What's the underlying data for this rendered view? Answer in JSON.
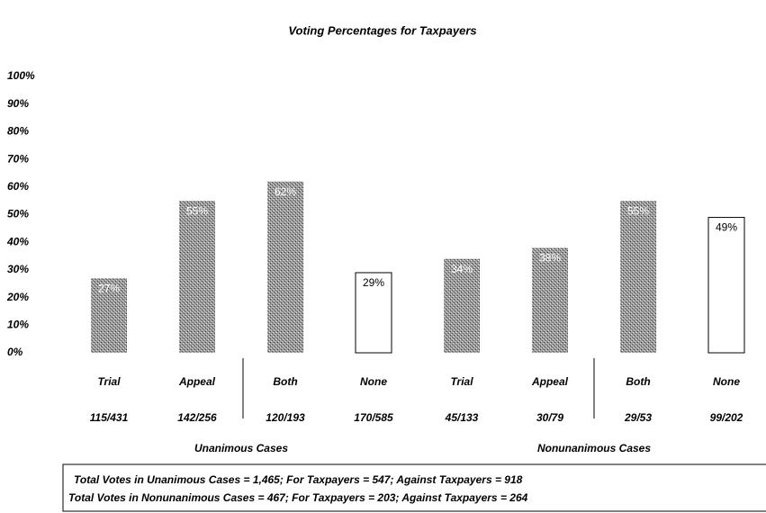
{
  "chart_data": {
    "type": "bar",
    "title": "Voting Percentages for Taxpayers",
    "categories": [
      "Trial",
      "Appeal",
      "Both",
      "None",
      "Trial",
      "Appeal",
      "Both",
      "None"
    ],
    "counts": [
      "115/431",
      "142/256",
      "120/193",
      "170/585",
      "45/133",
      "30/79",
      "29/53",
      "99/202"
    ],
    "values": [
      27,
      55,
      62,
      29,
      34,
      38,
      55,
      49
    ],
    "value_labels": [
      "27%",
      "55%",
      "62%",
      "29%",
      "34%",
      "38%",
      "55%",
      "49%"
    ],
    "colors": [
      "#8c8c8c",
      "#8c8c8c",
      "#8c8c8c",
      "#ffffff",
      "#8c8c8c",
      "#8c8c8c",
      "#8c8c8c",
      "#ffffff"
    ],
    "groups": [
      "Unanimous Cases",
      "Nonunanimous Cases"
    ],
    "ylim": [
      0,
      100
    ],
    "yticks": [
      {
        "value": 0,
        "label": "0%"
      },
      {
        "value": 10,
        "label": "10%"
      },
      {
        "value": 20,
        "label": "20%"
      },
      {
        "value": 30,
        "label": "30%"
      },
      {
        "value": 40,
        "label": "40%"
      },
      {
        "value": 50,
        "label": "50%"
      },
      {
        "value": 60,
        "label": "60%"
      },
      {
        "value": 70,
        "label": "70%"
      },
      {
        "value": 80,
        "label": "80%"
      },
      {
        "value": 90,
        "label": "90%"
      },
      {
        "value": 100,
        "label": "100%"
      }
    ],
    "notes": [
      "Total Votes in Unanimous Cases = 1,465; For Taxpayers = 547; Against Taxpayers = 918",
      "Total Votes in Nonunanimous Cases = 467; For Taxpayers = 203; Against Taxpayers = 264"
    ]
  }
}
